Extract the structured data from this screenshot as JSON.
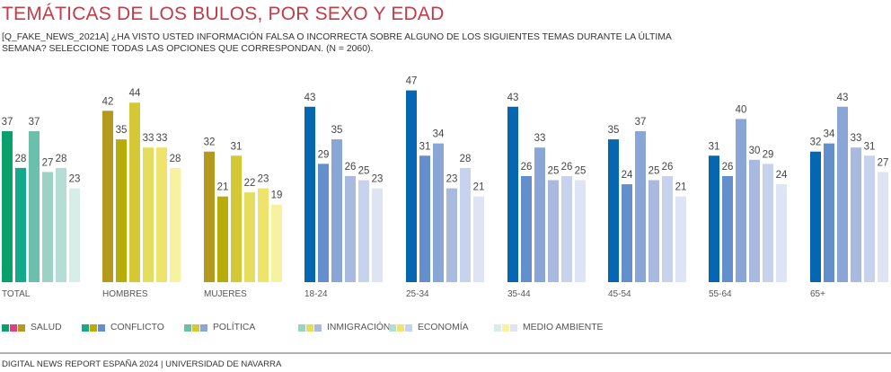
{
  "header": {
    "title": "TEMÁTICAS DE LOS BULOS, POR SEXO Y EDAD",
    "subtitle": "[Q_FAKE_NEWS_2021A] ¿HA VISTO USTED INFORMACIÓN FALSA O INCORRECTA  SOBRE ALGUNO DE LOS SIGUIENTES TEMAS DURANTE LA ÚLTIMA SEMANA? SELECCIONE TODAS LAS OPCIONES QUE CORRESPONDAN. (N = 2060)."
  },
  "footer": {
    "source": "DIGITAL NEWS REPORT ESPAÑA 2024 | UNIVERSIDAD DE NAVARRA"
  },
  "legend": [
    {
      "label": "SALUD",
      "colors": [
        "#0aa06b",
        "#e0407f",
        "#b39a1c"
      ]
    },
    {
      "label": "CONFLICTO",
      "colors": [
        "#12aa8a",
        "#b7ac0a",
        "#638fcc"
      ]
    },
    {
      "label": "POLÍTICA",
      "colors": [
        "#6cc0ab",
        "#d4c935",
        "#8aa6d7"
      ]
    },
    {
      "label": "INMIGRACIÓN",
      "colors": [
        "#9ad2c4",
        "#e5dd5d",
        "#a8badf"
      ]
    },
    {
      "label": "ECONOMÍA",
      "colors": [
        "#b4ddd5",
        "#efe36c",
        "#c7d3ec"
      ]
    },
    {
      "label": "MEDIO AMBIENTE",
      "colors": [
        "#d7ede8",
        "#f8f1a0",
        "#dfe4f4"
      ]
    }
  ],
  "chart_data": {
    "type": "bar",
    "title": "TEMÁTICAS DE LOS BULOS, POR SEXO Y EDAD",
    "xlabel": "",
    "ylabel": "",
    "ylim": [
      0,
      50
    ],
    "grid": false,
    "legend_position": "bottom-left",
    "categories": [
      "TOTAL",
      "HOMBRES",
      "MUJERES",
      "18-24",
      "25-34",
      "35-44",
      "45-54",
      "55-64",
      "65+"
    ],
    "series": [
      {
        "name": "SALUD",
        "values": [
          37,
          42,
          32,
          43,
          47,
          43,
          35,
          31,
          32
        ]
      },
      {
        "name": "CONFLICTO",
        "values": [
          28,
          35,
          21,
          29,
          31,
          26,
          24,
          26,
          34
        ]
      },
      {
        "name": "POLÍTICA",
        "values": [
          37,
          44,
          31,
          35,
          34,
          33,
          37,
          40,
          43
        ]
      },
      {
        "name": "INMIGRACIÓN",
        "values": [
          27,
          33,
          22,
          26,
          23,
          25,
          25,
          30,
          33
        ]
      },
      {
        "name": "ECONOMÍA",
        "values": [
          28,
          33,
          23,
          25,
          28,
          26,
          26,
          29,
          31
        ]
      },
      {
        "name": "MEDIO AMBIENTE",
        "values": [
          23,
          28,
          19,
          23,
          21,
          25,
          21,
          24,
          27
        ]
      }
    ],
    "group_palettes": [
      [
        "#0aa06b",
        "#12aa8a",
        "#6cc0ab",
        "#9ad2c4",
        "#b4ddd5",
        "#d7ede8"
      ],
      [
        "#b39a1c",
        "#b7ac0a",
        "#d4c935",
        "#e5dd5d",
        "#efe36c",
        "#f8f1a0"
      ],
      [
        "#b39a1c",
        "#b7ac0a",
        "#d4c935",
        "#e5dd5d",
        "#efe36c",
        "#f8f1a0"
      ],
      [
        "#0567b2",
        "#638fcc",
        "#8aa6d7",
        "#a8badf",
        "#c7d3ec",
        "#dfe4f4"
      ],
      [
        "#0567b2",
        "#638fcc",
        "#8aa6d7",
        "#a8badf",
        "#c7d3ec",
        "#dfe4f4"
      ],
      [
        "#0567b2",
        "#638fcc",
        "#8aa6d7",
        "#a8badf",
        "#c7d3ec",
        "#dfe4f4"
      ],
      [
        "#0567b2",
        "#638fcc",
        "#8aa6d7",
        "#a8badf",
        "#c7d3ec",
        "#dfe4f4"
      ],
      [
        "#0567b2",
        "#638fcc",
        "#8aa6d7",
        "#a8badf",
        "#c7d3ec",
        "#dfe4f4"
      ],
      [
        "#0567b2",
        "#638fcc",
        "#8aa6d7",
        "#a8badf",
        "#c7d3ec",
        "#dfe4f4"
      ]
    ]
  }
}
